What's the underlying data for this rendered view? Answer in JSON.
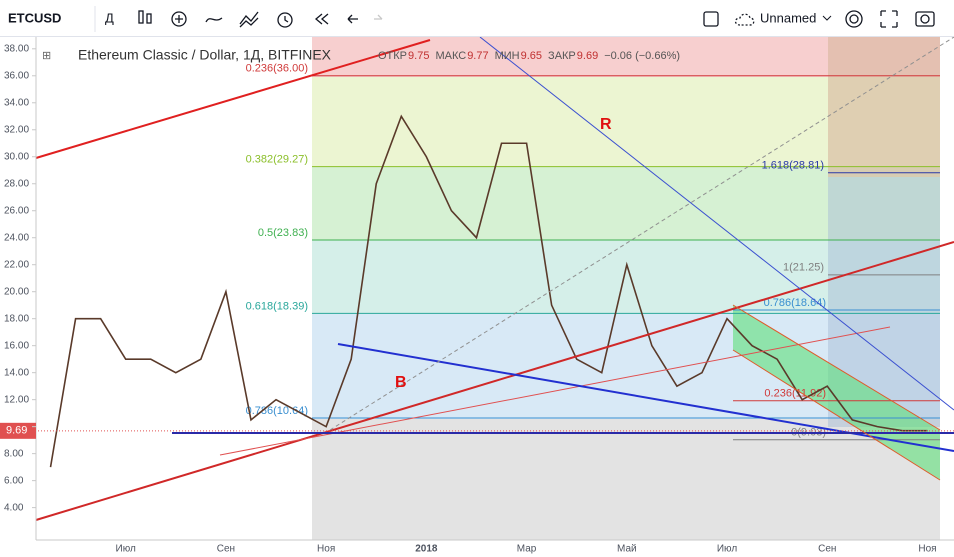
{
  "toolbar": {
    "symbol": "ETCUSD",
    "interval": "Д",
    "layout_name": "Unnamed"
  },
  "chart_data": {
    "type": "line",
    "title": "Ethereum Classic / Dollar, 1Д, BITFINEX",
    "ohlc": [
      "ОТКР",
      9.75,
      "МАКС",
      9.77,
      "МИН",
      9.65,
      "ЗАКР",
      9.69,
      "−0.06 (−0.66%)"
    ],
    "annotations": [
      "R",
      "B"
    ],
    "categories": [
      null,
      null,
      null,
      "Июл",
      null,
      null,
      null,
      "Сен",
      null,
      null,
      null,
      "Ноя",
      null,
      null,
      null,
      "2018",
      null,
      null,
      null,
      "Мар",
      null,
      null,
      null,
      "Май",
      null,
      null,
      null,
      "Июл",
      null,
      null,
      null,
      "Сен",
      null,
      null,
      null,
      "Ноя"
    ],
    "series": [
      {
        "name": "ETCUSD",
        "color": "#5a3a2a",
        "values": [
          7,
          18,
          18,
          15,
          15,
          14,
          15,
          20,
          10.5,
          12,
          11,
          10,
          15,
          28,
          33,
          30,
          26,
          24,
          31,
          31,
          19,
          15,
          14,
          22,
          16,
          13,
          14,
          18,
          16,
          15,
          12,
          13,
          10.5,
          10,
          9.7,
          9.7
        ]
      }
    ],
    "ylim": [
      1.6,
      38.8
    ],
    "yticks": [
      {
        "value": 4,
        "label": "4.00"
      },
      {
        "value": 6,
        "label": "6.00"
      },
      {
        "value": 8,
        "label": "8.00"
      },
      {
        "value": 10,
        "label": "10.00"
      },
      {
        "value": 12,
        "label": "12.00"
      },
      {
        "value": 14,
        "label": "14.00"
      },
      {
        "value": 16,
        "label": "16.00"
      },
      {
        "value": 18,
        "label": "18.00"
      },
      {
        "value": 20,
        "label": "20.00"
      },
      {
        "value": 22,
        "label": "22.00"
      },
      {
        "value": 24,
        "label": "24.00"
      },
      {
        "value": 26,
        "label": "26.00"
      },
      {
        "value": 28,
        "label": "28.00"
      },
      {
        "value": 30,
        "label": "30.00"
      },
      {
        "value": 32,
        "label": "32.00"
      },
      {
        "value": 34,
        "label": "34.00"
      },
      {
        "value": 36,
        "label": "36.00"
      },
      {
        "value": 38,
        "label": "38.00"
      }
    ],
    "last_price": 9.69,
    "fib_groups": [
      {
        "levels": [
          {
            "value": 36,
            "label": "0.236(36.00)",
            "color": "#d03a3a"
          },
          {
            "value": 29.27,
            "label": "0.382(29.27)",
            "color": "#8bbf2a"
          },
          {
            "value": 23.83,
            "label": "0.5(23.83)",
            "color": "#3fb050"
          },
          {
            "value": 18.39,
            "label": "0.618(18.39)",
            "color": "#2aa79b"
          },
          {
            "value": 10.64,
            "label": "0.786(10.64)",
            "color": "#3a8fd0"
          }
        ]
      },
      {
        "levels": [
          {
            "value": 28.81,
            "label": "1.618(28.81)",
            "color": "#2a3aa8"
          },
          {
            "value": 21.25,
            "label": "1(21.25)",
            "color": "#808080"
          }
        ]
      },
      {
        "levels": [
          {
            "value": 18.64,
            "label": "0.786(18.64)",
            "color": "#3a8fd0"
          },
          {
            "value": 11.92,
            "label": "0.236(11.92)",
            "color": "#d03a3a"
          },
          {
            "value": 9.03,
            "label": "0(9.03)",
            "color": "#808080"
          }
        ]
      }
    ]
  }
}
